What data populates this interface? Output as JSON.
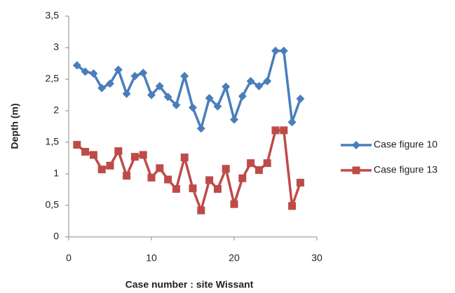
{
  "chart_data": {
    "type": "line",
    "x_label": "Case number : site Wissant",
    "y_label": "Depth (m)",
    "x": [
      1,
      2,
      3,
      4,
      5,
      6,
      7,
      8,
      9,
      10,
      11,
      12,
      13,
      14,
      15,
      16,
      17,
      18,
      19,
      20,
      21,
      22,
      23,
      24,
      25,
      26,
      27,
      28
    ],
    "series": [
      {
        "name": "Case figure 10",
        "color": "#4a7ebb",
        "marker": "diamond",
        "values": [
          2.72,
          2.62,
          2.59,
          2.36,
          2.43,
          2.65,
          2.27,
          2.55,
          2.6,
          2.25,
          2.39,
          2.22,
          2.09,
          2.55,
          2.05,
          1.72,
          2.2,
          2.07,
          2.38,
          1.86,
          2.23,
          2.47,
          2.39,
          2.47,
          2.95,
          2.95,
          1.82,
          2.19
        ]
      },
      {
        "name": "Case figure 13",
        "color": "#be4b48",
        "marker": "square",
        "values": [
          1.46,
          1.35,
          1.3,
          1.07,
          1.13,
          1.36,
          0.97,
          1.27,
          1.3,
          0.94,
          1.09,
          0.91,
          0.76,
          1.26,
          0.77,
          0.42,
          0.9,
          0.76,
          1.08,
          0.52,
          0.93,
          1.17,
          1.06,
          1.17,
          1.69,
          1.69,
          0.49,
          0.86
        ]
      }
    ],
    "xlim": [
      0,
      30
    ],
    "xticks": [
      0,
      10,
      20,
      30
    ],
    "ylim": [
      0,
      3.5
    ],
    "yticks": [
      0,
      {
        "value": 0.5,
        "label": "0,5"
      },
      1,
      {
        "value": 1.5,
        "label": "1,5"
      },
      2,
      {
        "value": 2.5,
        "label": "2,5"
      },
      3,
      {
        "value": 3.5,
        "label": "3,5"
      }
    ],
    "legend": "right"
  }
}
